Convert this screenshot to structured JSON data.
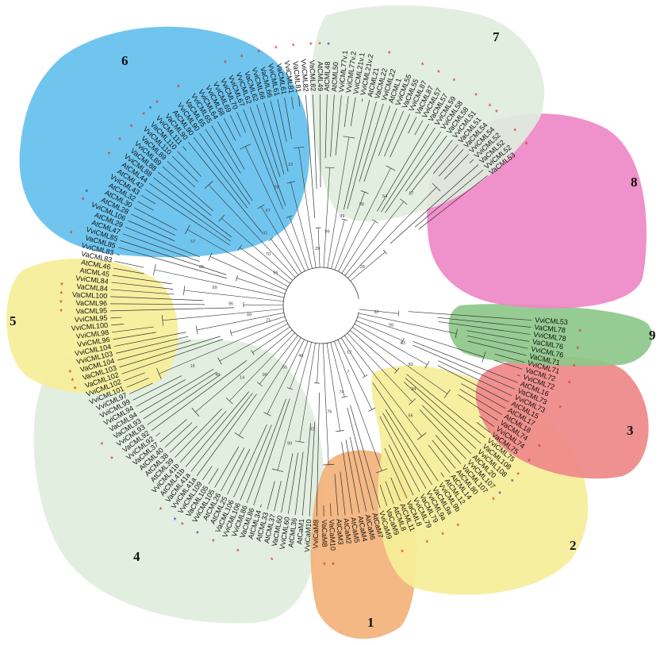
{
  "figure": {
    "clade_colors": {
      "green_light": "#dfeedd",
      "blue": "#64c0ee",
      "pink": "#ee88c6",
      "yellow": "#f6ee98",
      "orange": "#f2b27a",
      "red": "#ef8888",
      "green_dark": "#8dc88a"
    },
    "marker_colors": {
      "red": "#e0262a",
      "blue": "#2d3aa8"
    },
    "branch_color": "#333333",
    "clades": [
      {
        "number": "1",
        "color": "orange"
      },
      {
        "number": "2",
        "color": "yellow"
      },
      {
        "number": "3",
        "color": "red"
      },
      {
        "number": "4",
        "color": "green_light"
      },
      {
        "number": "5",
        "color": "yellow"
      },
      {
        "number": "6",
        "color": "blue"
      },
      {
        "number": "7",
        "color": "green_light"
      },
      {
        "number": "8",
        "color": "pink"
      },
      {
        "number": "9",
        "color": "green_dark"
      }
    ],
    "leaves": [
      {
        "label": "VviCML53",
        "star": ""
      },
      {
        "label": "VaCML78",
        "star": "red"
      },
      {
        "label": "VviCML78",
        "star": ""
      },
      {
        "label": "VaCML76",
        "star": "red"
      },
      {
        "label": "VviCML76",
        "star": ""
      },
      {
        "label": "VaCML71",
        "star": "red"
      },
      {
        "label": "VviCML71",
        "star": ""
      },
      {
        "label": "VaCML72",
        "star": "red"
      },
      {
        "label": "VviCML72",
        "star": ""
      },
      {
        "label": "AtCML16",
        "star": ""
      },
      {
        "label": "VaCML73",
        "star": "red"
      },
      {
        "label": "VviCML73",
        "star": ""
      },
      {
        "label": "AtCML15",
        "star": ""
      },
      {
        "label": "AtCML17",
        "star": ""
      },
      {
        "label": "AtCML18",
        "star": ""
      },
      {
        "label": "VaCML74",
        "star": "red"
      },
      {
        "label": "VviCML74",
        "star": ""
      },
      {
        "label": "VaCML75",
        "star": "red"
      },
      {
        "label": "VviCML75",
        "star": ""
      },
      {
        "label": "VaCML108",
        "star": "red"
      },
      {
        "label": "VviCML108",
        "star": "blue"
      },
      {
        "label": "AtCML20",
        "star": ""
      },
      {
        "label": "VviCML107",
        "star": "blue"
      },
      {
        "label": "VaCML107",
        "star": "red"
      },
      {
        "label": "AtCML80",
        "star": ""
      },
      {
        "label": "AtCML14",
        "star": ""
      },
      {
        "label": "AtCML12",
        "star": ""
      },
      {
        "label": "VviCML9b",
        "star": ""
      },
      {
        "label": "VaCML9a",
        "star": "red"
      },
      {
        "label": "VviCML9a",
        "star": ""
      },
      {
        "label": "VaCML79",
        "star": "red"
      },
      {
        "label": "VviCML79",
        "star": ""
      },
      {
        "label": "VaCML8",
        "star": "red"
      },
      {
        "label": "AtCML11",
        "star": ""
      },
      {
        "label": "AtCML8",
        "star": ""
      },
      {
        "label": "VaCaM9",
        "star": "red"
      },
      {
        "label": "VviCaM9",
        "star": ""
      },
      {
        "label": "AtCaM7",
        "star": ""
      },
      {
        "label": "AtCaM6",
        "star": ""
      },
      {
        "label": "AtCaM4",
        "star": ""
      },
      {
        "label": "AtCaM5",
        "star": ""
      },
      {
        "label": "AtCaM2",
        "star": ""
      },
      {
        "label": "AtCaM3",
        "star": ""
      },
      {
        "label": "VaCaM10",
        "star": "red"
      },
      {
        "label": "VaCaM8",
        "star": "red"
      },
      {
        "label": "VviCaM8",
        "star": ""
      },
      {
        "label": "VviCaM10",
        "star": ""
      },
      {
        "label": "AtCaM1",
        "star": ""
      },
      {
        "label": "AtCML36",
        "star": ""
      },
      {
        "label": "VviCML60",
        "star": ""
      },
      {
        "label": "VaCML60",
        "star": "red"
      },
      {
        "label": "AtCML37",
        "star": ""
      },
      {
        "label": "AtCML33",
        "star": ""
      },
      {
        "label": "AtCML34",
        "star": ""
      },
      {
        "label": "VaCML86",
        "star": "red"
      },
      {
        "label": "VviCML86",
        "star": ""
      },
      {
        "label": "VviCML106",
        "star": ""
      },
      {
        "label": "VaCML106",
        "star": "red"
      },
      {
        "label": "AtCML25",
        "star": ""
      },
      {
        "label": "AtCML26",
        "star": "blue"
      },
      {
        "label": "VviCML105",
        "star": ""
      },
      {
        "label": "VaCML105",
        "star": "red"
      },
      {
        "label": "VviCML109",
        "star": "blue"
      },
      {
        "label": "VviCML41a",
        "star": ""
      },
      {
        "label": "VaCML41a",
        "star": "red"
      },
      {
        "label": "AtCML41b",
        "star": ""
      },
      {
        "label": "VviCML41b",
        "star": ""
      },
      {
        "label": "AtCML39",
        "star": ""
      },
      {
        "label": "AtCML38",
        "star": ""
      },
      {
        "label": "AtCML40",
        "star": ""
      },
      {
        "label": "VaCML37",
        "star": ""
      },
      {
        "label": "VviCML92",
        "star": ""
      },
      {
        "label": "VaCML92",
        "star": "red"
      },
      {
        "label": "VviCML93",
        "star": ""
      },
      {
        "label": "VaCML93",
        "star": "red"
      },
      {
        "label": "VaCML94",
        "star": ""
      },
      {
        "label": "VviCML94",
        "star": ""
      },
      {
        "label": "VviCML99",
        "star": ""
      },
      {
        "label": "VviCML97",
        "star": ""
      },
      {
        "label": "VviCML101",
        "star": ""
      },
      {
        "label": "VviCML102",
        "star": ""
      },
      {
        "label": "VaCML102",
        "star": "red"
      },
      {
        "label": "VaCML103",
        "star": "red"
      },
      {
        "label": "VaCML104",
        "star": "red"
      },
      {
        "label": "VviCML103",
        "star": ""
      },
      {
        "label": "VviCML104",
        "star": ""
      },
      {
        "label": "VviCML96",
        "star": ""
      },
      {
        "label": "VviCML98",
        "star": ""
      },
      {
        "label": "VviCML100",
        "star": ""
      },
      {
        "label": "VviCML95",
        "star": ""
      },
      {
        "label": "VaCML95",
        "star": "red"
      },
      {
        "label": "VaCML96",
        "star": "red"
      },
      {
        "label": "VaCML100",
        "star": "red"
      },
      {
        "label": "VaCML84",
        "star": "red"
      },
      {
        "label": "VviCML84",
        "star": ""
      },
      {
        "label": "AtCML45",
        "star": ""
      },
      {
        "label": "AtCML46",
        "star": ""
      },
      {
        "label": "VaCML83",
        "star": ""
      },
      {
        "label": "VviCML83",
        "star": ""
      },
      {
        "label": "VaCML85",
        "star": "red"
      },
      {
        "label": "VviCML85",
        "star": ""
      },
      {
        "label": "AtCML47",
        "star": ""
      },
      {
        "label": "AtCML29",
        "star": ""
      },
      {
        "label": "VviCML106",
        "star": "red"
      },
      {
        "label": "AtCML28",
        "star": "blue"
      },
      {
        "label": "AtCML30",
        "star": ""
      },
      {
        "label": "AtCML32",
        "star": ""
      },
      {
        "label": "VviCML43",
        "star": ""
      },
      {
        "label": "AtCML42",
        "star": ""
      },
      {
        "label": "AtCML44",
        "star": "red"
      },
      {
        "label": "VviCML88",
        "star": ""
      },
      {
        "label": "VaCML88",
        "star": "red"
      },
      {
        "label": "VviCML89",
        "star": ""
      },
      {
        "label": "VaCML89",
        "star": "red"
      },
      {
        "label": "VviCML110",
        "star": ""
      },
      {
        "label": "VaCML110",
        "star": "red"
      },
      {
        "label": "VviCML111",
        "star": "blue"
      },
      {
        "label": "VaCML90",
        "star": "red"
      },
      {
        "label": "AtCML90",
        "star": ""
      },
      {
        "label": "VviCML90",
        "star": ""
      },
      {
        "label": "VaCML65",
        "star": "red"
      },
      {
        "label": "VviCML65",
        "star": ""
      },
      {
        "label": "VviCML64",
        "star": ""
      },
      {
        "label": "VviCML68",
        "star": ""
      },
      {
        "label": "VviCML69",
        "star": ""
      },
      {
        "label": "VviCML70",
        "star": ""
      },
      {
        "label": "VviCML67",
        "star": "red"
      },
      {
        "label": "VviCML62",
        "star": ""
      },
      {
        "label": "VaCML62",
        "star": "red"
      },
      {
        "label": "VviCML66",
        "star": ""
      },
      {
        "label": "VaCML66",
        "star": "red"
      },
      {
        "label": "VviCML61",
        "star": ""
      },
      {
        "label": "VaCML61",
        "star": "red"
      },
      {
        "label": "VviCML81",
        "star": ""
      },
      {
        "label": "VaCML81",
        "star": "red"
      },
      {
        "label": "VviCML82",
        "star": ""
      },
      {
        "label": "VaCML82",
        "star": "red"
      },
      {
        "label": "AtCML49",
        "star": "red"
      },
      {
        "label": "AtCML48",
        "star": "blue"
      },
      {
        "label": "AtCML50",
        "star": ""
      },
      {
        "label": "VviCML77v.1",
        "star": ""
      },
      {
        "label": "VviCML77v.2",
        "star": ""
      },
      {
        "label": "VviCML21v.1",
        "star": ""
      },
      {
        "label": "VviCML21v.2",
        "star": ""
      },
      {
        "label": "AtCML21",
        "star": ""
      },
      {
        "label": "VaCML22",
        "star": "red"
      },
      {
        "label": "VviCML22",
        "star": ""
      },
      {
        "label": "AtCML1",
        "star": ""
      },
      {
        "label": "VviCML55",
        "star": ""
      },
      {
        "label": "VaCML55",
        "star": "red"
      },
      {
        "label": "VviCML87",
        "star": ""
      },
      {
        "label": "VaCML87",
        "star": "red"
      },
      {
        "label": "VviCML57",
        "star": ""
      },
      {
        "label": "VaCML57",
        "star": "red"
      },
      {
        "label": "VviCML59",
        "star": ""
      },
      {
        "label": "VviCML58",
        "star": ""
      },
      {
        "label": "VaCML58",
        "star": "red"
      },
      {
        "label": "VviCML51",
        "star": ""
      },
      {
        "label": "VaCML51",
        "star": "red"
      },
      {
        "label": "VaCML54",
        "star": "red"
      },
      {
        "label": "VviCML54",
        "star": ""
      },
      {
        "label": "VviCML52",
        "star": ""
      },
      {
        "label": "VaCML52",
        "star": "red"
      },
      {
        "label": "VviCML52",
        "star": ""
      },
      {
        "label": "VaCML53",
        "star": "red"
      }
    ],
    "bootstrap_values": [
      "32",
      "99",
      "63",
      "83",
      "34",
      "56",
      "12",
      "7",
      "74",
      "76",
      "92",
      "99",
      "48",
      "55",
      "99",
      "14",
      "49",
      "16",
      "71",
      "99",
      "96",
      "99",
      "85",
      "57",
      "99",
      "70",
      "31",
      "67",
      "28",
      "23",
      "29",
      "99",
      "99",
      "99",
      "54",
      "87",
      "28"
    ]
  }
}
